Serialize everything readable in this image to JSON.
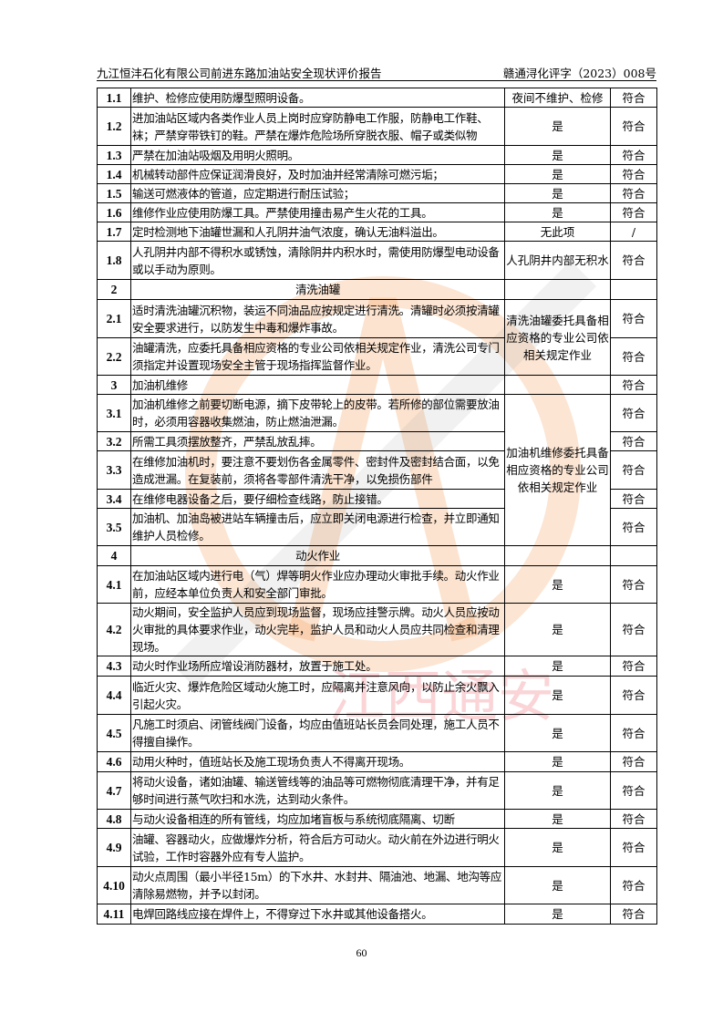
{
  "header": {
    "title": "九江恒沣石化有限公司前进东路加油站安全现状评价报告",
    "doc_no": "赣通浔化评字（2023）008号"
  },
  "watermark": {
    "text": "江西通安",
    "colors": {
      "orange": "#f4a261",
      "red": "#e63946",
      "blue": "#48cae4",
      "gray": "#9e9e9e"
    }
  },
  "rows": [
    {
      "no": "1.1",
      "content": "维护、检修应使用防爆型照明设备。",
      "result": "夜间不维护、检修",
      "conclusion": "符合"
    },
    {
      "no": "1.2",
      "content": "进加油站区域内各类作业人员上岗时应穿防静电工作服，防静电工作鞋、袜；严禁穿带铁钉的鞋。严禁在爆炸危险场所穿脱衣服、帽子或类似物",
      "result": "是",
      "conclusion": "符合"
    },
    {
      "no": "1.3",
      "content": "严禁在加油站吸烟及用明火照明。",
      "result": "是",
      "conclusion": "符合"
    },
    {
      "no": "1.4",
      "content": "机械转动部件应保证润滑良好，及时加油并经常清除可燃污垢；",
      "result": "是",
      "conclusion": "符合"
    },
    {
      "no": "1.5",
      "content": "输送可燃液体的管道，应定期进行耐压试验；",
      "result": "是",
      "conclusion": "符合"
    },
    {
      "no": "1.6",
      "content": "维修作业应使用防爆工具。严禁使用撞击易产生火花的工具。",
      "result": "是",
      "conclusion": "符合"
    },
    {
      "no": "1.7",
      "content": "定时检测地下油罐世漏和人孔阴井油气浓度，确认无油料溢出。",
      "result": "无此项",
      "conclusion": "/"
    },
    {
      "no": "1.8",
      "content": "人孔阴井内部不得积水或锈蚀，清除阴井内积水时，需使用防爆型电动设备或以手动为原则。",
      "result": "人孔阴井内部无积水",
      "conclusion": "符合"
    },
    {
      "no": "2",
      "content": "清洗油罐",
      "result": "",
      "conclusion": "",
      "center": true
    },
    {
      "no": "2.1",
      "content": "适时清洗油罐沉积物，装运不同油品应按规定进行清洗。清罐时必须按清罐安全要求进行，以防发生中毒和爆炸事故。",
      "result": "清洗油罐委托具备相应资格的专业公司依相关规定作业",
      "rowspan": 2,
      "conclusion": "符合"
    },
    {
      "no": "2.2",
      "content": "油罐清洗，应委托具备相应资格的专业公司依相关规定作业，清洗公司专门须指定并设置现场安全主管于现场指挥监督作业。",
      "conclusion": "符合"
    },
    {
      "no": "3",
      "content": "加油机维修",
      "result": "",
      "conclusion": "符合"
    },
    {
      "no": "3.1",
      "content": "加油机维修之前要切断电源，摘下皮带轮上的皮带。若所修的部位需要放油时，必须用容器收集燃油，防止燃油泄漏。",
      "result": "加油机维修委托具备相应资格的专业公司依相关规定作业",
      "rowspan": 5,
      "conclusion": "符合"
    },
    {
      "no": "3.2",
      "content": "所需工具须摆放整齐，严禁乱放乱摔。",
      "conclusion": "符合"
    },
    {
      "no": "3.3",
      "content": "在维修加油机时，要注意不要划伤各金属零件、密封件及密封结合面，以免造成泄漏。在复装前，须将各零部件清洗干净，以免损伤部件",
      "conclusion": "符合"
    },
    {
      "no": "3.4",
      "content": "在维修电器设备之后，要仔细检查线路，防止接错。",
      "conclusion": "符合"
    },
    {
      "no": "3.5",
      "content": "加油机、加油岛被进站车辆撞击后，应立即关闭电源进行检查，并立即通知维护人员检修。",
      "conclusion": "符合"
    },
    {
      "no": "4",
      "content": "动火作业",
      "result": "",
      "conclusion": "",
      "center": true
    },
    {
      "no": "4.1",
      "content": "在加油站区域内进行电（气）焊等明火作业应办理动火审批手续。动火作业前，应经本单位负责人和安全部门审批。",
      "result": "是",
      "conclusion": "符合"
    },
    {
      "no": "4.2",
      "content": "动火期间，安全监护人员应到现场监督，现场应挂警示牌。动火人员应按动火审批的具体要求作业，动火完毕，监护人员和动火人员应共同检查和清理现场。",
      "result": "是",
      "conclusion": "符合"
    },
    {
      "no": "4.3",
      "content": "动火时作业场所应增设消防器材，放置于施工处。",
      "result": "是",
      "conclusion": "符合"
    },
    {
      "no": "4.4",
      "content": "临近火灾、爆炸危险区域动火施工时，应隔离并注意风向，以防止余火飘入引起火灾。",
      "result": "是",
      "conclusion": "符合"
    },
    {
      "no": "4.5",
      "content": "凡施工时须启、闭管线阀门设备，均应由值班站长员会同处理，施工人员不得擅自操作。",
      "result": "是",
      "conclusion": "符合"
    },
    {
      "no": "4.6",
      "content": "动用火种时，值班站长及施工现场负责人不得离开现场。",
      "result": "是",
      "conclusion": "符合"
    },
    {
      "no": "4.7",
      "content": "将动火设备，诸如油罐、输送管线等的油品等可燃物彻底清理干净，并有足够时间进行蒸气吹扫和水洗，达到动火条件。",
      "result": "是",
      "conclusion": "符合"
    },
    {
      "no": "4.8",
      "content": "与动火设备相连的所有管线，均应加堵盲板与系统彻底隔离、切断",
      "result": "是",
      "conclusion": "符合"
    },
    {
      "no": "4.9",
      "content": "油罐、容器动火，应做爆炸分析，符合后方可动火。动火前在外边进行明火试验，工作时容器外应有专人监护。",
      "result": "是",
      "conclusion": "符合"
    },
    {
      "no": "4.10",
      "content": "动火点周围（最小半径15m）的下水井、水封井、隔油池、地漏、地沟等应清除易燃物，并予以封闭。",
      "result": "是",
      "conclusion": "符合"
    },
    {
      "no": "4.11",
      "content": "电焊回路线应接在焊件上，不得穿过下水井或其他设备搭火。",
      "result": "是",
      "conclusion": "符合"
    }
  ],
  "footer": {
    "page_number": "60"
  }
}
